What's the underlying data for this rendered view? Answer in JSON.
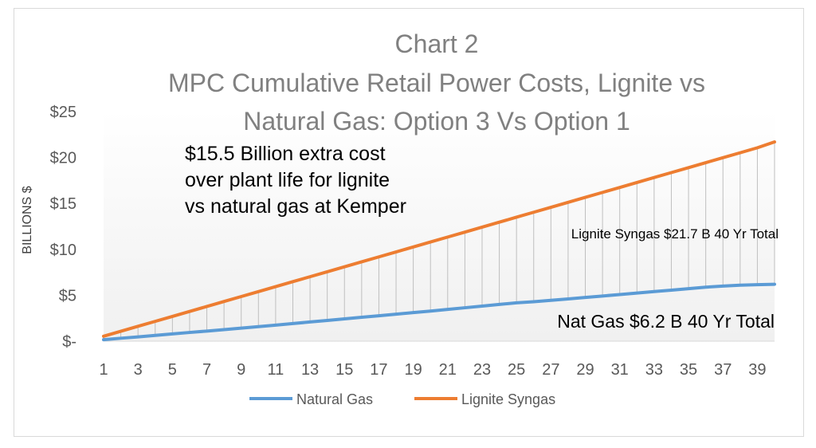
{
  "chart_data": {
    "type": "line",
    "title_line1": "Chart 2",
    "title_line2": "MPC Cumulative Retail Power Costs, Lignite vs",
    "title_line3": "Natural Gas: Option 3 Vs Option 1",
    "ylabel": "BILLIONS $",
    "xlabel": "",
    "x": [
      1,
      2,
      3,
      4,
      5,
      6,
      7,
      8,
      9,
      10,
      11,
      12,
      13,
      14,
      15,
      16,
      17,
      18,
      19,
      20,
      21,
      22,
      23,
      24,
      25,
      26,
      27,
      28,
      29,
      30,
      31,
      32,
      33,
      34,
      35,
      36,
      37,
      38,
      39,
      40
    ],
    "x_tick_labels": [
      "1",
      "3",
      "5",
      "7",
      "9",
      "11",
      "13",
      "15",
      "17",
      "19",
      "21",
      "23",
      "25",
      "27",
      "29",
      "31",
      "33",
      "35",
      "37",
      "39"
    ],
    "y_tick_labels": [
      "$-",
      "$5",
      "$10",
      "$15",
      "$20",
      "$25"
    ],
    "ylim": [
      0,
      25
    ],
    "grid": "vertical drop lines between series",
    "series": [
      {
        "name": "Natural Gas",
        "color": "#5b9bd5",
        "values": [
          0.16,
          0.32,
          0.47,
          0.63,
          0.79,
          0.95,
          1.1,
          1.26,
          1.42,
          1.58,
          1.75,
          1.92,
          2.09,
          2.26,
          2.43,
          2.6,
          2.77,
          2.94,
          3.11,
          3.28,
          3.46,
          3.64,
          3.82,
          4.0,
          4.18,
          4.3,
          4.45,
          4.6,
          4.76,
          4.92,
          5.08,
          5.24,
          5.4,
          5.56,
          5.72,
          5.88,
          6.0,
          6.1,
          6.15,
          6.2
        ]
      },
      {
        "name": "Lignite Syngas",
        "color": "#ed7d31",
        "values": [
          0.54,
          1.08,
          1.62,
          2.16,
          2.7,
          3.24,
          3.78,
          4.32,
          4.86,
          5.4,
          5.94,
          6.48,
          7.02,
          7.56,
          8.1,
          8.64,
          9.18,
          9.72,
          10.26,
          10.8,
          11.34,
          11.88,
          12.42,
          12.96,
          13.5,
          14.04,
          14.58,
          15.12,
          15.66,
          16.2,
          16.74,
          17.28,
          17.82,
          18.36,
          18.9,
          19.44,
          19.98,
          20.52,
          21.06,
          21.7
        ]
      }
    ],
    "legend_position": "bottom",
    "annotations": {
      "extra_cost_line1": "$15.5 Billion extra cost",
      "extra_cost_line2": "over plant life for lignite",
      "extra_cost_line3": "vs natural gas at Kemper",
      "lignite_total": "Lignite Syngas $21.7 B 40 Yr Total",
      "nat_gas_total": "Nat Gas $6.2 B 40 Yr Total"
    }
  }
}
